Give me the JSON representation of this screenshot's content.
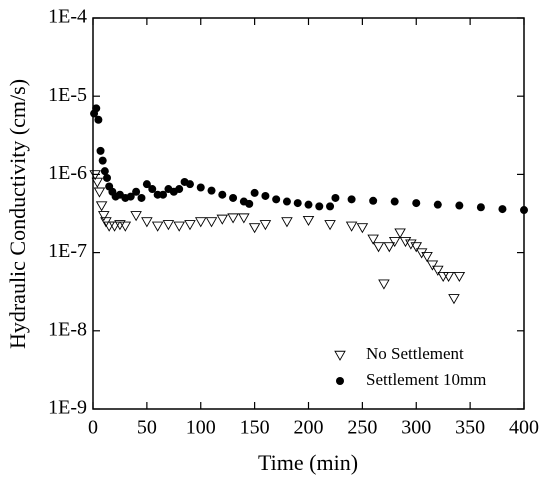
{
  "chart_data": {
    "type": "scatter",
    "xlabel": "Time (min)",
    "ylabel": "Hydraulic Conductivity (cm/s)",
    "xlim": [
      0,
      400
    ],
    "xticks": [
      0,
      50,
      100,
      150,
      200,
      250,
      300,
      350,
      400
    ],
    "ylim": [
      1e-09,
      0.0001
    ],
    "yscale": "log",
    "yticks": [
      {
        "value": 1e-09,
        "label": "1E-9"
      },
      {
        "value": 1e-08,
        "label": "1E-8"
      },
      {
        "value": 1e-07,
        "label": "1E-7"
      },
      {
        "value": 1e-06,
        "label": "1E-6"
      },
      {
        "value": 1e-05,
        "label": "1E-5"
      },
      {
        "value": 0.0001,
        "label": "1E-4"
      }
    ],
    "legend": "lower right",
    "series": [
      {
        "name": "No Settlement",
        "color": "#000000",
        "marker": "triangle-down",
        "x": [
          2,
          4,
          6,
          8,
          10,
          12,
          15,
          20,
          25,
          30,
          40,
          50,
          60,
          70,
          80,
          90,
          100,
          110,
          120,
          130,
          140,
          150,
          160,
          180,
          200,
          220,
          240,
          250,
          260,
          265,
          270,
          275,
          280,
          285,
          290,
          295,
          300,
          305,
          310,
          315,
          320,
          325,
          330,
          335,
          340
        ],
        "values": [
          1e-06,
          8e-07,
          6e-07,
          4e-07,
          3e-07,
          2.5e-07,
          2.2e-07,
          2.2e-07,
          2.3e-07,
          2.2e-07,
          3e-07,
          2.5e-07,
          2.2e-07,
          2.3e-07,
          2.2e-07,
          2.3e-07,
          2.5e-07,
          2.5e-07,
          2.7e-07,
          2.8e-07,
          2.8e-07,
          2.1e-07,
          2.3e-07,
          2.5e-07,
          2.6e-07,
          2.3e-07,
          2.2e-07,
          2.1e-07,
          1.5e-07,
          1.2e-07,
          4e-08,
          1.2e-07,
          1.4e-07,
          1.8e-07,
          1.4e-07,
          1.3e-07,
          1.2e-07,
          1e-07,
          9e-08,
          7e-08,
          6e-08,
          5e-08,
          5e-08,
          2.6e-08,
          5e-08
        ]
      },
      {
        "name": "Settlement 10mm",
        "color": "#000000",
        "marker": "circle",
        "x": [
          1,
          3,
          5,
          7,
          9,
          11,
          13,
          15,
          18,
          21,
          25,
          30,
          35,
          40,
          45,
          50,
          55,
          60,
          65,
          70,
          75,
          80,
          85,
          90,
          100,
          110,
          120,
          130,
          140,
          145,
          150,
          160,
          170,
          180,
          190,
          200,
          210,
          220,
          225,
          240,
          260,
          280,
          300,
          320,
          340,
          360,
          380,
          400
        ],
        "values": [
          6e-06,
          7e-06,
          5e-06,
          2e-06,
          1.5e-06,
          1.1e-06,
          9e-07,
          7e-07,
          6e-07,
          5.2e-07,
          5.5e-07,
          5e-07,
          5.2e-07,
          6e-07,
          5e-07,
          7.5e-07,
          6.5e-07,
          5.5e-07,
          5.5e-07,
          6.5e-07,
          6e-07,
          6.5e-07,
          8e-07,
          7.5e-07,
          6.8e-07,
          6.2e-07,
          5.5e-07,
          5e-07,
          4.5e-07,
          4.2e-07,
          5.8e-07,
          5.3e-07,
          4.8e-07,
          4.5e-07,
          4.3e-07,
          4.1e-07,
          3.9e-07,
          3.9e-07,
          5e-07,
          4.8e-07,
          4.6e-07,
          4.5e-07,
          4.3e-07,
          4.1e-07,
          4e-07,
          3.8e-07,
          3.6e-07,
          3.5e-07
        ]
      }
    ]
  }
}
